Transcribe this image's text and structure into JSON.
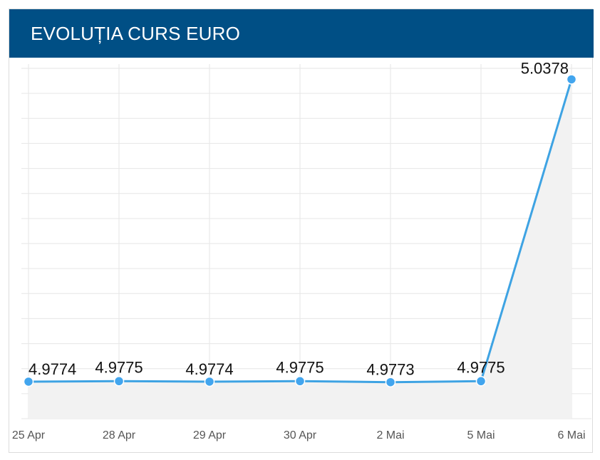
{
  "header": {
    "title": "EVOLUȚIA CURS EURO"
  },
  "colors": {
    "header_bg": "#004f85",
    "line": "#3ea3e3",
    "point": "#42a5ee",
    "area": "#f2f2f2",
    "grid": "#e6e6e6"
  },
  "chart_data": {
    "type": "area",
    "title": "EVOLUȚIA CURS EURO",
    "xlabel": "",
    "ylabel": "",
    "categories": [
      "25 Apr",
      "28 Apr",
      "29 Apr",
      "30 Apr",
      "2 Mai",
      "5 Mai",
      "6 Mai"
    ],
    "values": [
      4.9774,
      4.9775,
      4.9774,
      4.9775,
      4.9773,
      4.9775,
      5.0378
    ],
    "ylim": [
      4.97,
      5.04
    ],
    "data_labels": true,
    "grid": true,
    "legend": "none"
  }
}
